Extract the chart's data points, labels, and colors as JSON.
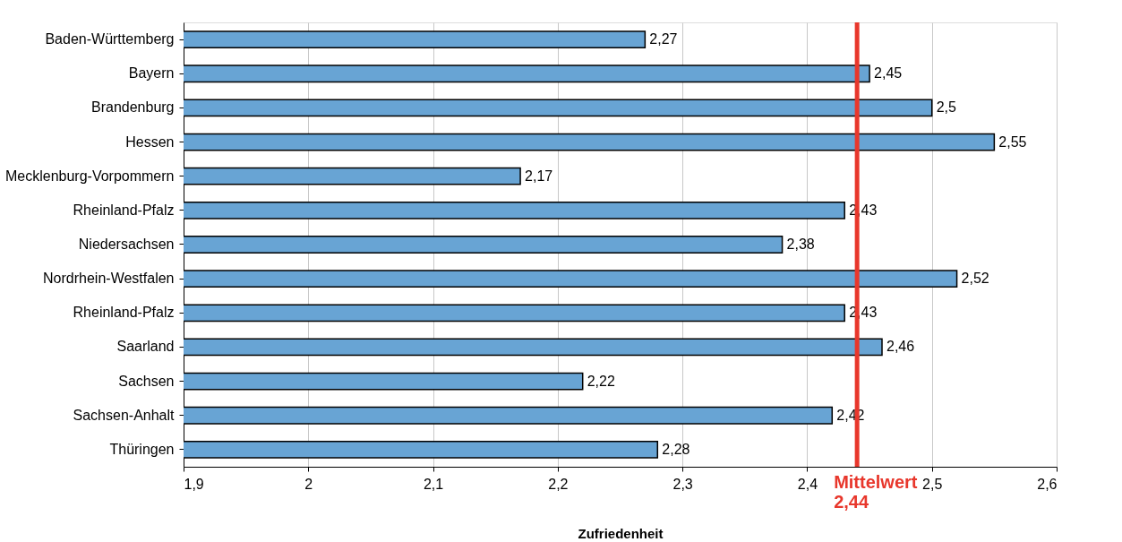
{
  "chart_data": {
    "type": "bar",
    "orientation": "horizontal",
    "xlabel": "Zufriedenheit",
    "categories": [
      "Baden-Württemberg",
      "Bayern",
      "Brandenburg",
      "Hessen",
      "Mecklenburg-Vorpommern",
      "Rheinland-Pfalz",
      "Niedersachsen",
      "Nordrhein-Westfalen",
      "Rheinland-Pfalz",
      "Saarland",
      "Sachsen",
      "Sachsen-Anhalt",
      "Thüringen"
    ],
    "values": [
      2.27,
      2.45,
      2.5,
      2.55,
      2.17,
      2.43,
      2.38,
      2.52,
      2.43,
      2.46,
      2.22,
      2.42,
      2.28
    ],
    "value_labels": [
      "2,27",
      "2,45",
      "2,5",
      "2,55",
      "2,17",
      "2,43",
      "2,38",
      "2,52",
      "2,43",
      "2,46",
      "2,22",
      "2,42",
      "2,28"
    ],
    "color": "#68a4d4",
    "xlim": [
      1.9,
      2.6
    ],
    "xticks": [
      {
        "value": 1.9,
        "label": "1,9"
      },
      {
        "value": 2,
        "label": "2"
      },
      {
        "value": 2.1,
        "label": "2,1"
      },
      {
        "value": 2.2,
        "label": "2,2"
      },
      {
        "value": 2.3,
        "label": "2,3"
      },
      {
        "value": 2.4,
        "label": "2,4"
      },
      {
        "value": 2.5,
        "label": "2,5"
      },
      {
        "value": 2.6,
        "label": "2,6"
      }
    ],
    "grid": "x",
    "ref_lines": [
      {
        "axis": "x",
        "value": 2.44,
        "label": "Mittelwert 2,44",
        "color": "#e8372c"
      }
    ]
  }
}
